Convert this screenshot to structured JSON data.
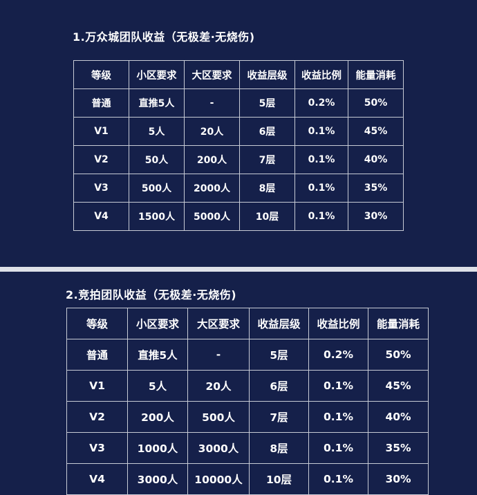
{
  "section1": {
    "title": "1.万众城团队收益（无极差·无烧伤)",
    "headers": [
      "等级",
      "小区要求",
      "大区要求",
      "收益层级",
      "收益比例",
      "能量消耗"
    ],
    "rows": [
      [
        "普通",
        "直推5人",
        "-",
        "5层",
        "0.2%",
        "50%"
      ],
      [
        "V1",
        "5人",
        "20人",
        "6层",
        "0.1%",
        "45%"
      ],
      [
        "V2",
        "50人",
        "200人",
        "7层",
        "0.1%",
        "40%"
      ],
      [
        "V3",
        "500人",
        "2000人",
        "8层",
        "0.1%",
        "35%"
      ],
      [
        "V4",
        "1500人",
        "5000人",
        "10层",
        "0.1%",
        "30%"
      ]
    ]
  },
  "section2": {
    "title": "2.竞拍团队收益（无极差·无烧伤)",
    "headers": [
      "等级",
      "小区要求",
      "大区要求",
      "收益层级",
      "收益比例",
      "能量消耗"
    ],
    "rows": [
      [
        "普通",
        "直推5人",
        "-",
        "5层",
        "0.2%",
        "50%"
      ],
      [
        "V1",
        "5人",
        "20人",
        "6层",
        "0.1%",
        "45%"
      ],
      [
        "V2",
        "200人",
        "500人",
        "7层",
        "0.1%",
        "40%"
      ],
      [
        "V3",
        "1000人",
        "3000人",
        "8层",
        "0.1%",
        "35%"
      ],
      [
        "V4",
        "3000人",
        "10000人",
        "10层",
        "0.1%",
        "30%"
      ]
    ]
  },
  "colors": {
    "background": "#15204a",
    "divider": "#dde0e8",
    "grid": "#c8ccd6",
    "text": "#ffffff"
  }
}
